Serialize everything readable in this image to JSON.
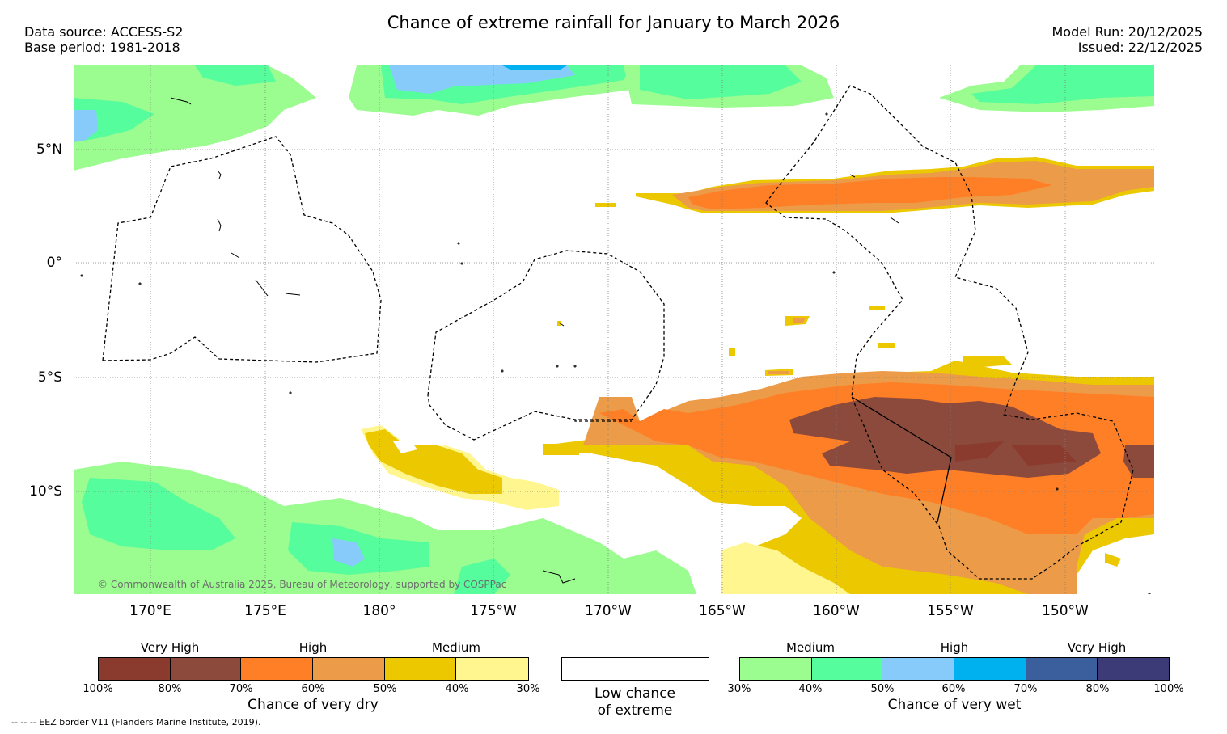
{
  "header": {
    "title": "Chance of extreme rainfall for January to March 2026",
    "data_source": "Data source: ACCESS-S2",
    "base_period": "Base period: 1981-2018",
    "model_run": "Model Run: 20/12/2025",
    "issued": "Issued: 22/12/2025"
  },
  "map": {
    "lat_labels": [
      "5°N",
      "0°",
      "5°S",
      "10°S"
    ],
    "lon_labels": [
      "170°E",
      "175°E",
      "180°",
      "175°W",
      "170°W",
      "165°W",
      "160°W",
      "155°W",
      "150°W"
    ],
    "copyright": "© Commonwealth of Australia 2025, Bureau of Meteorology, supported by COSPPac"
  },
  "legend": {
    "dry": {
      "levels": [
        "Very High",
        "High",
        "Medium"
      ],
      "colors": [
        "#8b3a2e",
        "#8b4a3c",
        "#ff7f27",
        "#ec9b48",
        "#ecc800",
        "#fff68f"
      ],
      "ticks": [
        "100%",
        "80%",
        "70%",
        "60%",
        "50%",
        "40%",
        "30%"
      ],
      "caption": "Chance of very dry"
    },
    "low": {
      "caption_line1": "Low chance",
      "caption_line2": "of extreme"
    },
    "wet": {
      "levels": [
        "Medium",
        "High",
        "Very High"
      ],
      "colors": [
        "#9bfc8f",
        "#55fd9d",
        "#87cbfb",
        "#00b1ef",
        "#3a5f9c",
        "#3c3a77"
      ],
      "ticks": [
        "30%",
        "40%",
        "50%",
        "60%",
        "70%",
        "80%",
        "100%"
      ],
      "caption": "Chance of very wet"
    }
  },
  "footer": {
    "eez_note": "--  --  -- EEZ border V11 (Flanders Marine Institute, 2019)."
  }
}
